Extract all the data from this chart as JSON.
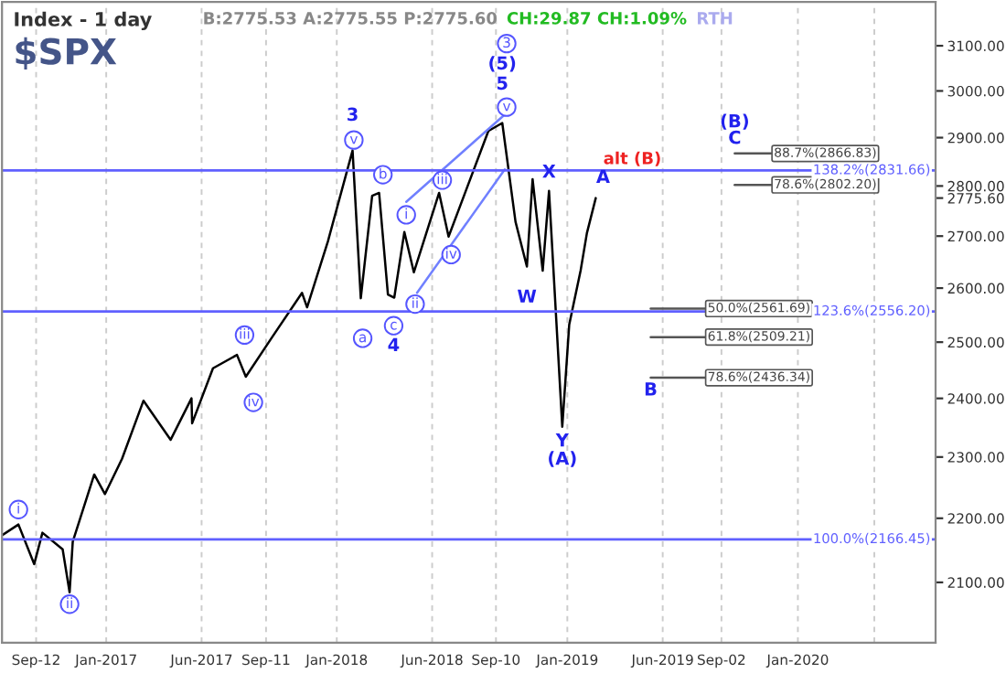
{
  "chart_data": {
    "type": "line",
    "title": "Index - 1 day",
    "subtitle": "$SPX",
    "log": "y",
    "grid": "x",
    "legend": false,
    "xlim": [
      "2016-07-20",
      "2020-08-06"
    ],
    "xticks": [
      {
        "value": "2016-09-12",
        "label": "Sep-12"
      },
      {
        "value": "2017-01-01",
        "label": "Jan-2017"
      },
      {
        "value": "2017-06-01",
        "label": "Jun-2017"
      },
      {
        "value": "2017-09-11",
        "label": "Sep-11"
      },
      {
        "value": "2018-01-01",
        "label": "Jan-2018"
      },
      {
        "value": "2018-06-01",
        "label": "Jun-2018"
      },
      {
        "value": "2018-09-10",
        "label": "Sep-10"
      },
      {
        "value": "2019-01-01",
        "label": "Jan-2019"
      },
      {
        "value": "2019-06-01",
        "label": "Jun-2019"
      },
      {
        "value": "2019-09-02",
        "label": "Sep-02"
      },
      {
        "value": "2020-01-01",
        "label": "Jan-2020"
      },
      {
        "value": "2020-05-01",
        "label": null
      }
    ],
    "ylim": [
      2010,
      3200
    ],
    "yticks": [
      {
        "value": 2100,
        "label": "2100.00"
      },
      {
        "value": 2200,
        "label": "2200.00"
      },
      {
        "value": 2300,
        "label": "2300.00"
      },
      {
        "value": 2400,
        "label": "2400.00"
      },
      {
        "value": 2500,
        "label": "2500.00"
      },
      {
        "value": 2600,
        "label": "2600.00"
      },
      {
        "value": 2700,
        "label": "2700.00"
      },
      {
        "value": 2800,
        "label": "2800.00"
      },
      {
        "value": 2900,
        "label": "2900.00"
      },
      {
        "value": 3000,
        "label": "3000.00"
      },
      {
        "value": 3100,
        "label": "3100.00"
      },
      {
        "value": 2775.6,
        "label": "2775.60"
      }
    ],
    "series": [
      {
        "color": "#000000",
        "x": [
          "2016-07-20",
          "2016-08-15",
          "2016-09-09",
          "2016-09-22",
          "2016-10-24",
          "2016-11-04",
          "2016-11-09",
          "2016-12-13",
          "2016-12-30",
          "2017-01-26",
          "2017-03-01",
          "2017-04-13",
          "2017-05-16",
          "2017-05-17",
          "2017-06-19",
          "2017-07-27",
          "2017-08-10",
          "2017-09-20",
          "2017-11-07",
          "2017-11-15",
          "2017-12-18",
          "2018-01-26",
          "2018-02-08",
          "2018-02-26",
          "2018-03-09",
          "2018-03-23",
          "2018-04-02",
          "2018-04-18",
          "2018-05-03",
          "2018-06-12",
          "2018-06-27",
          "2018-08-29",
          "2018-09-20",
          "2018-10-11",
          "2018-10-29",
          "2018-11-07",
          "2018-11-23",
          "2018-12-03",
          "2018-12-24",
          "2019-01-04",
          "2019-01-22",
          "2019-02-01",
          "2019-02-15"
        ],
        "values": [
          2173,
          2190,
          2128,
          2177,
          2151,
          2085,
          2163,
          2271,
          2239,
          2297,
          2396,
          2329,
          2400,
          2357,
          2453,
          2477,
          2438,
          2508,
          2591,
          2564,
          2690,
          2873,
          2581,
          2780,
          2786,
          2588,
          2582,
          2708,
          2630,
          2786,
          2699,
          2914,
          2931,
          2728,
          2641,
          2814,
          2633,
          2790,
          2351,
          2532,
          2633,
          2706,
          2775.6
        ]
      },
      {
        "color": "#7080ff",
        "x": [
          "2018-04-21",
          "2018-09-24"
        ],
        "values": [
          2768,
          2949
        ]
      },
      {
        "color": "#7080ff",
        "x": [
          "2018-05-08",
          "2018-09-24"
        ],
        "values": [
          2591,
          2834
        ]
      },
      {
        "name": "88.7%(2866.83)",
        "color": "#555555",
        "x": [
          "2019-09-23",
          "2019-11-20"
        ],
        "values": [
          2866.83,
          2866.83
        ]
      },
      {
        "name": "78.6%(2802.20)",
        "color": "#555555",
        "x": [
          "2019-09-23",
          "2019-11-20"
        ],
        "values": [
          2802.2,
          2802.2
        ]
      },
      {
        "name": "50.0%(2561.69)",
        "color": "#555555",
        "x": [
          "2019-05-13",
          "2019-08-07"
        ],
        "values": [
          2561.69,
          2561.69
        ]
      },
      {
        "name": "61.8%(2509.21)",
        "color": "#555555",
        "x": [
          "2019-05-13",
          "2019-08-07"
        ],
        "values": [
          2509.21,
          2509.21
        ]
      },
      {
        "name": "78.6%(2436.34)",
        "color": "#555555",
        "x": [
          "2019-05-13",
          "2019-08-07"
        ],
        "values": [
          2436.34,
          2436.34
        ]
      }
    ],
    "ref_lines": [
      {
        "axis": "y",
        "value": 2831.66,
        "label": "138.2%(2831.66)",
        "color": "#6060ff"
      },
      {
        "axis": "y",
        "value": 2556.2,
        "label": "123.6%(2556.20)",
        "color": "#6060ff"
      },
      {
        "axis": "y",
        "value": 2166.45,
        "label": "100.0%(2166.45)",
        "color": "#6060ff"
      }
    ],
    "annotations": [
      "B:2775.53 A:2775.55 P:2775.60",
      "CH:29.87 CH:1.09%",
      "RTH",
      {
        "text": "i",
        "x": "2016-08-15",
        "y": 2214
      },
      {
        "text": "ii",
        "x": "2016-11-04",
        "y": 2067
      },
      {
        "text": "iii",
        "x": "2017-08-08",
        "y": 2513
      },
      {
        "text": "iv",
        "x": "2017-08-22",
        "y": 2393
      },
      {
        "text": "v",
        "x": "2018-01-28",
        "y": 2895
      },
      {
        "text": "a",
        "x": "2018-02-11",
        "y": 2507
      },
      {
        "text": "b",
        "x": "2018-03-15",
        "y": 2823
      },
      {
        "text": "c",
        "x": "2018-04-01",
        "y": 2530
      },
      {
        "text": "i",
        "x": "2018-04-21",
        "y": 2742
      },
      {
        "text": "ii",
        "x": "2018-05-05",
        "y": 2570
      },
      {
        "text": "iii",
        "x": "2018-06-17",
        "y": 2812
      },
      {
        "text": "iv",
        "x": "2018-07-01",
        "y": 2664
      },
      {
        "text": "v",
        "x": "2018-09-27",
        "y": 2965
      },
      {
        "text": "3",
        "x": "2018-09-27",
        "y": 3105
      },
      {
        "text": "3",
        "x": "2018-01-26",
        "y": 2873
      },
      {
        "text": "4",
        "x": "2018-04-01",
        "y": 2556.2
      },
      {
        "text": "5",
        "x": "2018-09-20",
        "y": 2931
      },
      {
        "text": "W",
        "x": "2018-10-29",
        "y": 2641
      },
      {
        "text": "X",
        "x": "2018-12-03",
        "y": 2790
      },
      {
        "text": "Y",
        "x": "2018-12-24",
        "y": 2351
      },
      {
        "text": "(A)",
        "x": "2018-12-24",
        "y": 2351
      },
      {
        "text": "A",
        "x": "2019-02-15",
        "y": 2775.6
      },
      {
        "text": "B",
        "x": "2019-05-13",
        "y": 2436.34
      },
      {
        "text": "(B)",
        "x": "2019-09-23",
        "y": 2866.83
      },
      {
        "text": "C",
        "x": "2019-09-23",
        "y": 2866.83
      },
      {
        "text": "alt (B)",
        "x": "2019-04-14",
        "y": 2831.66
      },
      "(5)"
    ]
  }
}
